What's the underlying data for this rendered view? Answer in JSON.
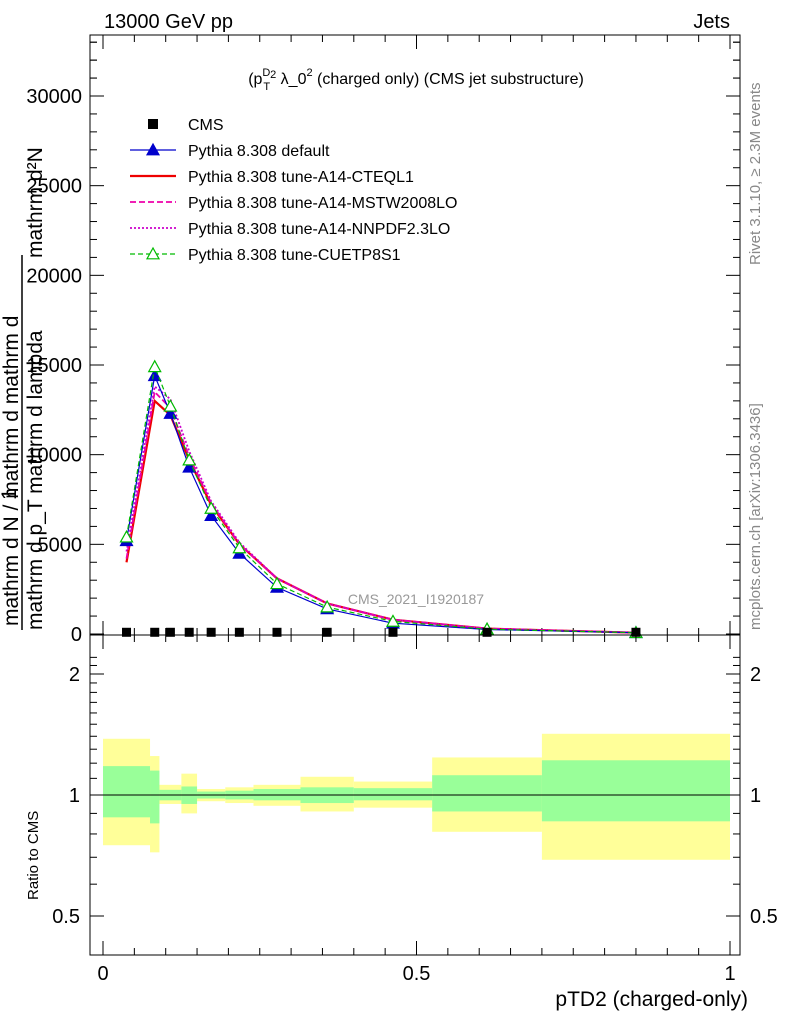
{
  "header": {
    "left": "13000 GeV pp",
    "right": "Jets"
  },
  "side_labels": {
    "rivet": "Rivet 3.1.10, ≥ 2.3M events",
    "mcplots": "mcplots.cern.ch [arXiv:1306.3436]"
  },
  "main_plot": {
    "title": "(p_T^D)^2 λ_0^2 (charged only) (CMS jet substructure)",
    "watermark": "CMS_2021_I1920187",
    "ylabel_line1": "mathrm d²N",
    "ylabel_line2": "mathrm d p_T mathrm d lambda",
    "ylabel_num": "1",
    "ylabel_den": "mathrm d N / mathrm d mathrm d",
    "yticks": [
      "0",
      "5000",
      "10000",
      "15000",
      "20000",
      "25000",
      "30000"
    ]
  },
  "ratio_plot": {
    "ylabel": "Ratio to CMS",
    "yticks": [
      "0.5",
      "1",
      "2"
    ],
    "xticks": [
      "0",
      "0.5",
      "1"
    ],
    "xlabel": "pTD2 (charged-only)"
  },
  "legend": [
    {
      "label": "CMS",
      "color": "#000000",
      "style": "data-marker"
    },
    {
      "label": "Pythia 8.308 default",
      "color": "#0000cc",
      "style": "solid-triangle"
    },
    {
      "label": "Pythia 8.308 tune-A14-CTEQL1",
      "color": "#ee0000",
      "style": "solid-thick"
    },
    {
      "label": "Pythia 8.308 tune-A14-MSTW2008LO",
      "color": "#ee00aa",
      "style": "dashed"
    },
    {
      "label": "Pythia 8.308 tune-A14-NNPDF2.3LO",
      "color": "#cc00cc",
      "style": "dotted"
    },
    {
      "label": "Pythia 8.308 tune-CUETP8S1",
      "color": "#00bb00",
      "style": "dashed-open-triangle"
    }
  ],
  "chart_data": [
    {
      "type": "line",
      "xlim": [
        -0.04,
        1.04
      ],
      "ylim": [
        0,
        33000
      ],
      "x": [
        0.0375,
        0.0825,
        0.1075,
        0.1375,
        0.1725,
        0.2175,
        0.2775,
        0.3575,
        0.4625,
        0.6125,
        0.85
      ],
      "cms": [
        40,
        40,
        40,
        40,
        40,
        40,
        40,
        40,
        40,
        40,
        40
      ],
      "series": [
        {
          "name": "Pythia 8.308 default",
          "values": [
            5200,
            14400,
            12300,
            9300,
            6600,
            4500,
            2600,
            1400,
            600,
            250,
            70
          ]
        },
        {
          "name": "Pythia 8.308 tune-A14-CTEQL1",
          "values": [
            4000,
            13000,
            12200,
            9700,
            7200,
            5000,
            3100,
            1700,
            800,
            300,
            70
          ]
        },
        {
          "name": "Pythia 8.308 tune-A14-MSTW2008LO",
          "values": [
            4200,
            13500,
            12600,
            9900,
            7300,
            5000,
            3100,
            1700,
            800,
            300,
            70
          ]
        },
        {
          "name": "Pythia 8.308 tune-A14-NNPDF2.3LO",
          "values": [
            4600,
            13800,
            13100,
            10200,
            7400,
            5100,
            3100,
            1700,
            800,
            300,
            70
          ]
        },
        {
          "name": "Pythia 8.308 tune-CUETP8S1",
          "values": [
            5400,
            14900,
            12700,
            9700,
            7000,
            4800,
            2800,
            1500,
            700,
            270,
            70
          ]
        }
      ]
    },
    {
      "type": "area",
      "ylim_log": [
        0.4,
        2.3
      ],
      "bins": [
        {
          "x0": 0.0,
          "x1": 0.075,
          "green": [
            0.88,
            1.18
          ],
          "yellow": [
            0.75,
            1.38
          ]
        },
        {
          "x0": 0.075,
          "x1": 0.09,
          "green": [
            0.85,
            1.15
          ],
          "yellow": [
            0.72,
            1.25
          ]
        },
        {
          "x0": 0.09,
          "x1": 0.125,
          "green": [
            0.97,
            1.03
          ],
          "yellow": [
            0.95,
            1.06
          ]
        },
        {
          "x0": 0.125,
          "x1": 0.15,
          "green": [
            0.95,
            1.05
          ],
          "yellow": [
            0.9,
            1.13
          ]
        },
        {
          "x0": 0.15,
          "x1": 0.195,
          "green": [
            0.98,
            1.02
          ],
          "yellow": [
            0.965,
            1.035
          ]
        },
        {
          "x0": 0.195,
          "x1": 0.24,
          "green": [
            0.975,
            1.025
          ],
          "yellow": [
            0.955,
            1.045
          ]
        },
        {
          "x0": 0.24,
          "x1": 0.315,
          "green": [
            0.97,
            1.035
          ],
          "yellow": [
            0.94,
            1.06
          ]
        },
        {
          "x0": 0.315,
          "x1": 0.4,
          "green": [
            0.955,
            1.045
          ],
          "yellow": [
            0.91,
            1.11
          ]
        },
        {
          "x0": 0.4,
          "x1": 0.525,
          "green": [
            0.97,
            1.04
          ],
          "yellow": [
            0.93,
            1.08
          ]
        },
        {
          "x0": 0.525,
          "x1": 0.7,
          "green": [
            0.91,
            1.12
          ],
          "yellow": [
            0.81,
            1.24
          ]
        },
        {
          "x0": 0.7,
          "x1": 1.0,
          "green": [
            0.86,
            1.22
          ],
          "yellow": [
            0.69,
            1.42
          ]
        }
      ]
    }
  ]
}
